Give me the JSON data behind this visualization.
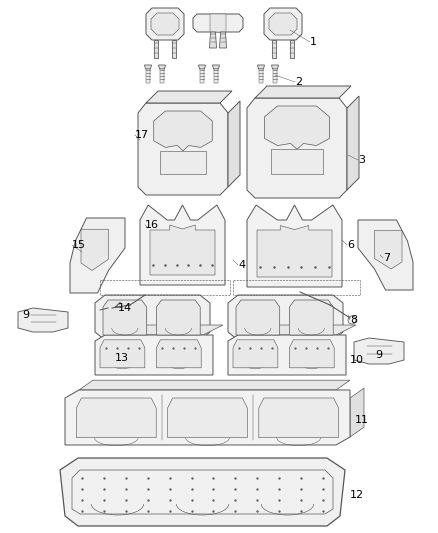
{
  "bg_color": "#ffffff",
  "line_color": "#555555",
  "label_color": "#000000",
  "font_size": 8,
  "figsize": [
    4.38,
    5.33
  ],
  "dpi": 100,
  "lw": 0.7,
  "coord_system": {
    "xlim": [
      0,
      438
    ],
    "ylim": [
      0,
      533
    ]
  }
}
